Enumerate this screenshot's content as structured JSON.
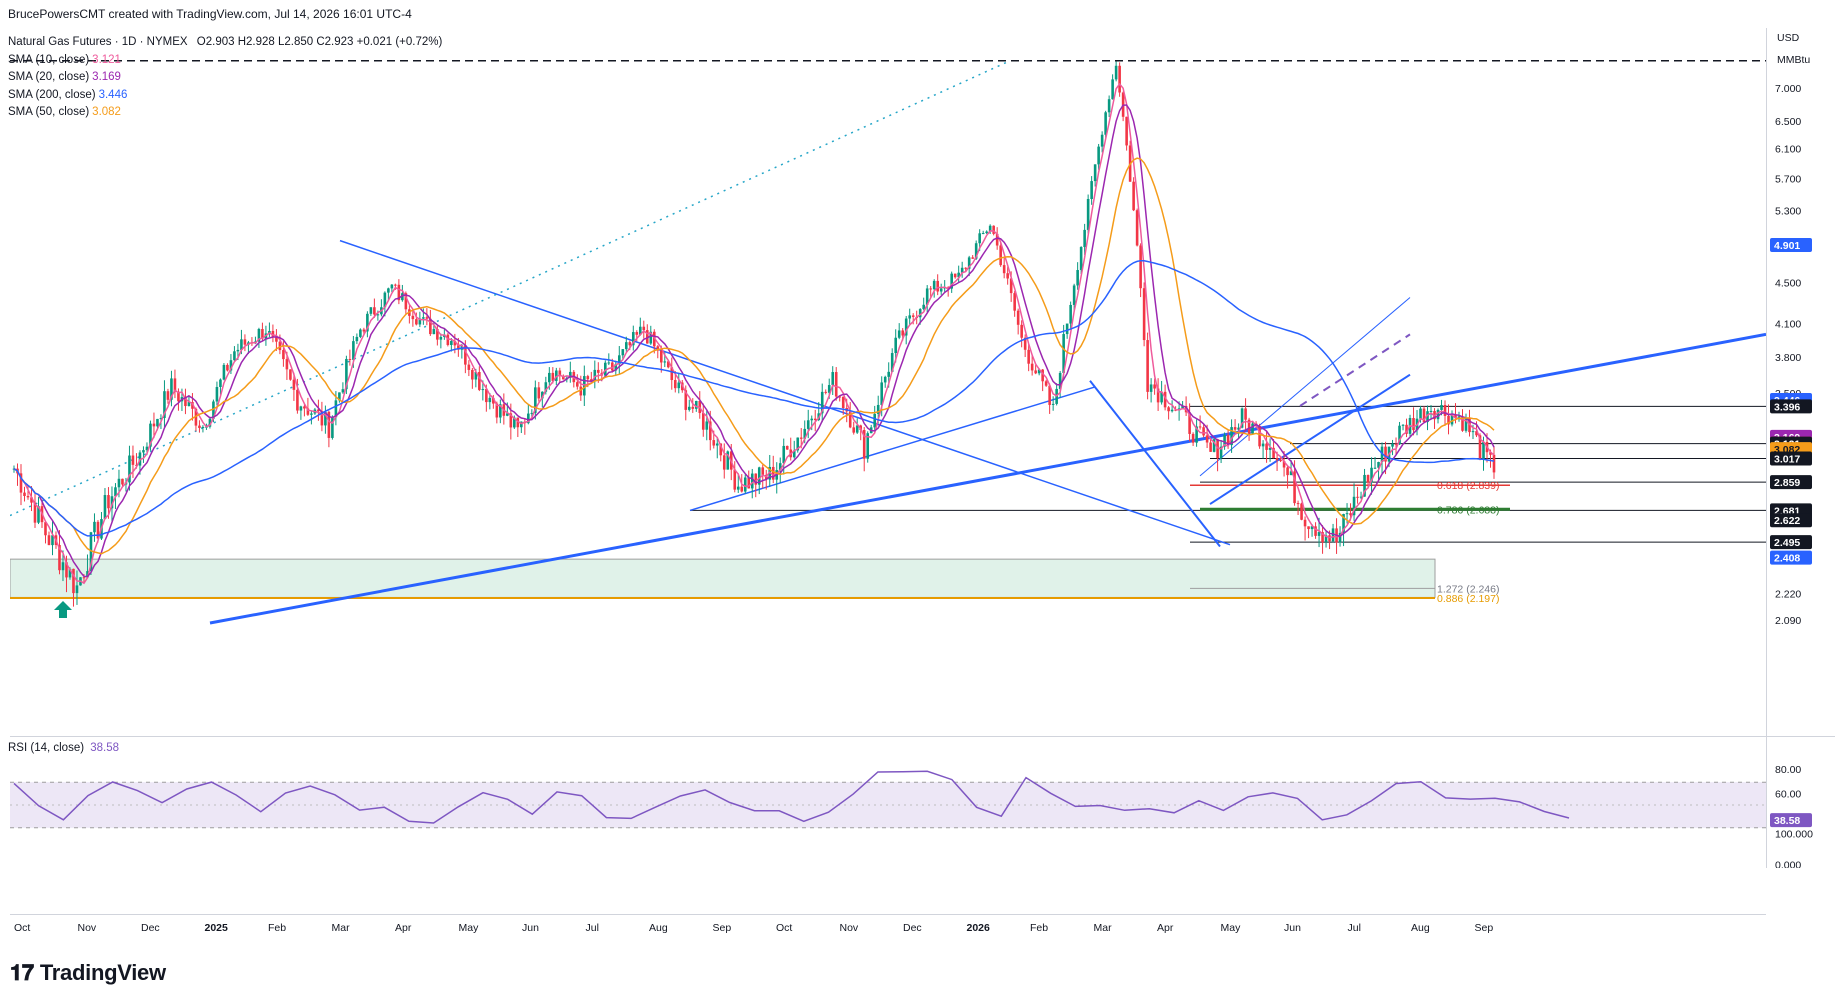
{
  "credit": "BrucePowersCMT created with TradingView.com, Jul 14, 2026 16:01 UTC-4",
  "header": {
    "symbol": "Natural Gas Futures · 1D · NYMEX",
    "ohlc": "O2.903 H2.928 L2.850 C2.923 +0.021 (+0.72%)"
  },
  "indicators": [
    {
      "label": "SMA (10, close)",
      "value": "3.121",
      "color": "#ef5b9c"
    },
    {
      "label": "SMA (20, close)",
      "value": "3.169",
      "color": "#9c27b0"
    },
    {
      "label": "SMA (200, close)",
      "value": "3.446",
      "color": "#2962ff"
    },
    {
      "label": "SMA (50, close)",
      "value": "3.082",
      "color": "#f59c1a"
    }
  ],
  "rsi_legend": {
    "label": "RSI (14, close)",
    "value": "38.58"
  },
  "axis": {
    "currency": "USD",
    "unit": "MMBtu"
  },
  "logo": "TradingView",
  "colors": {
    "candle_up": "#089981",
    "candle_down": "#f23645",
    "trendline": "#2962ff",
    "sma10": "#ef5b9c",
    "sma20": "#9c27b0",
    "sma50": "#f59c1a",
    "sma200": "#2962ff",
    "rsi": "#7e57c2",
    "rsi_band": "#ede7f6",
    "support_zone": "#e0f2e9",
    "fib_886": "#e69b00"
  },
  "chart_data": {
    "type": "candlestick",
    "log_scale": true,
    "ylim": [
      2.09,
      7.6
    ],
    "yticks": [
      2.09,
      2.22,
      2.5,
      2.8,
      3.1,
      3.5,
      3.8,
      4.1,
      4.5,
      4.9,
      5.3,
      5.7,
      6.1,
      6.5,
      7.0
    ],
    "ytick_labels": [
      "2.090",
      "2.220",
      "",
      "",
      "",
      "3.500",
      "3.800",
      "4.100",
      "4.500",
      "",
      "5.300",
      "5.700",
      "6.100",
      "6.500",
      "7.000"
    ],
    "x_labels": [
      "Oct",
      "Nov",
      "Dec",
      "2025",
      "Feb",
      "Mar",
      "Apr",
      "May",
      "Jun",
      "Jul",
      "Aug",
      "Sep",
      "Oct",
      "Nov",
      "Dec",
      "2026",
      "Feb",
      "Mar",
      "Apr",
      "May",
      "Jun",
      "Jul",
      "Aug",
      "Sep"
    ],
    "price_path": [
      [
        "Oct",
        2.95
      ],
      [
        "Oct",
        2.55
      ],
      [
        "Oct",
        2.25
      ],
      [
        "Nov",
        2.75
      ],
      [
        "Nov",
        3.05
      ],
      [
        "Dec",
        3.55
      ],
      [
        "Dec",
        3.25
      ],
      [
        "2025",
        3.85
      ],
      [
        "2025",
        4.05
      ],
      [
        "Feb",
        3.45
      ],
      [
        "Feb",
        3.25
      ],
      [
        "Feb",
        4.05
      ],
      [
        "Mar",
        4.45
      ],
      [
        "Mar",
        4.1
      ],
      [
        "Apr",
        3.95
      ],
      [
        "Apr",
        3.5
      ],
      [
        "May",
        3.2
      ],
      [
        "May",
        3.7
      ],
      [
        "Jun",
        3.55
      ],
      [
        "Jun",
        3.7
      ],
      [
        "Jul",
        4.05
      ],
      [
        "Jul",
        3.55
      ],
      [
        "Aug",
        3.25
      ],
      [
        "Aug",
        2.85
      ],
      [
        "Sep",
        2.9
      ],
      [
        "Sep",
        3.2
      ],
      [
        "Oct",
        3.6
      ],
      [
        "Oct",
        3.1
      ],
      [
        "Nov",
        3.9
      ],
      [
        "Nov",
        4.4
      ],
      [
        "Dec",
        4.55
      ],
      [
        "Dec",
        5.15
      ],
      [
        "2026",
        3.95
      ],
      [
        "2026",
        3.35
      ],
      [
        "2026",
        5.1
      ],
      [
        "Feb",
        7.4
      ],
      [
        "Feb",
        3.6
      ],
      [
        "Feb",
        3.35
      ],
      [
        "Mar",
        3.05
      ],
      [
        "Mar",
        3.3
      ],
      [
        "Apr",
        3.1
      ],
      [
        "Apr",
        2.65
      ],
      [
        "May",
        2.5
      ],
      [
        "May",
        2.9
      ],
      [
        "Jun",
        3.2
      ],
      [
        "Jun",
        3.4
      ],
      [
        "Jul",
        3.3
      ],
      [
        "Jul",
        2.923
      ]
    ],
    "sma_series": [
      {
        "name": "SMA (10, close)",
        "last": 3.121
      },
      {
        "name": "SMA (20, close)",
        "last": 3.169
      },
      {
        "name": "SMA (50, close)",
        "last": 3.082
      },
      {
        "name": "SMA (200, close)",
        "last": 3.446
      }
    ],
    "price_tags": [
      {
        "value": 4.901,
        "label": "4.901",
        "bg": "#2962ff",
        "fg": "#ffffff"
      },
      {
        "value": 3.446,
        "label": "3.446",
        "bg": "#2962ff",
        "fg": "#ffffff"
      },
      {
        "value": 3.396,
        "label": "3.396",
        "bg": "#131722",
        "fg": "#ffffff"
      },
      {
        "value": 3.169,
        "label": "3.169",
        "bg": "#9c27b0",
        "fg": "#ffffff"
      },
      {
        "value": 3.121,
        "label": "3.121",
        "bg": "#f23645",
        "fg": "#ffffff"
      },
      {
        "value": 3.121,
        "label": "3.121",
        "bg": "#131722",
        "fg": "#ffffff"
      },
      {
        "value": 3.082,
        "label": "3.082",
        "bg": "#f59c1a",
        "fg": "#131722"
      },
      {
        "value": 3.017,
        "label": "3.017",
        "bg": "#131722",
        "fg": "#ffffff"
      },
      {
        "value": 2.859,
        "label": "2.859",
        "bg": "#131722",
        "fg": "#ffffff"
      },
      {
        "value": 2.681,
        "label": "2.681",
        "bg": "#131722",
        "fg": "#ffffff"
      },
      {
        "value": 2.622,
        "label": "2.622",
        "bg": "#131722",
        "fg": "#ffffff"
      },
      {
        "value": 2.495,
        "label": "2.495",
        "bg": "#131722",
        "fg": "#ffffff"
      },
      {
        "value": 2.408,
        "label": "2.408",
        "bg": "#2962ff",
        "fg": "#ffffff"
      }
    ],
    "fib_labels": [
      {
        "label": "0.618 (2.839)",
        "value": 2.839,
        "color": "#e53935"
      },
      {
        "label": "0.786 (2.688)",
        "value": 2.688,
        "color": "#2e7d32"
      },
      {
        "label": "1.272 (2.246)",
        "value": 2.246,
        "color": "#787b86"
      },
      {
        "label": "0.886 (2.197)",
        "value": 2.197,
        "color": "#e69b00"
      }
    ],
    "rsi": {
      "ylim": [
        0,
        100
      ],
      "ticks": [
        "80.00",
        "60.00",
        "100.000",
        "0.000"
      ],
      "bands": [
        70,
        30
      ],
      "mid": 50,
      "last": 38.58,
      "path": [
        70,
        50,
        40,
        60,
        70,
        62,
        55,
        65,
        72,
        60,
        45,
        60,
        68,
        55,
        42,
        48,
        35,
        32,
        50,
        60,
        55,
        45,
        62,
        58,
        40,
        38,
        50,
        58,
        65,
        55,
        42,
        48,
        35,
        40,
        60,
        75,
        82,
        78,
        70,
        45,
        42,
        75,
        60,
        48,
        52,
        45,
        50,
        42,
        55,
        48,
        60,
        62,
        58,
        40,
        38,
        52,
        65,
        70,
        60,
        58,
        55,
        52,
        48,
        38.58
      ]
    }
  }
}
